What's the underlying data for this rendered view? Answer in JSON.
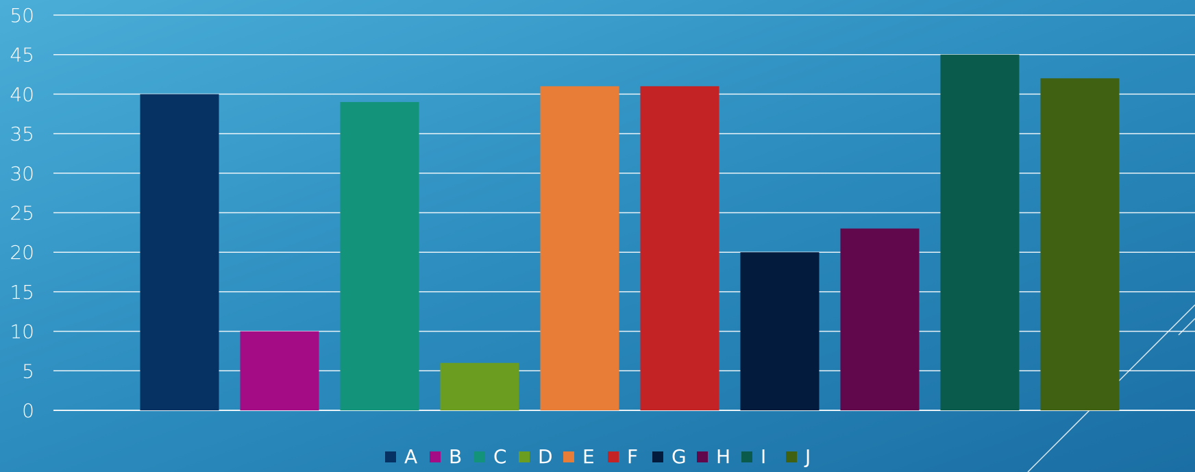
{
  "chart_data": {
    "type": "bar",
    "categories": [
      "A",
      "B",
      "C",
      "D",
      "E",
      "F",
      "G",
      "H",
      "I",
      "J"
    ],
    "series": [
      {
        "values": [
          40,
          10,
          39,
          6,
          41,
          41,
          20,
          23,
          45,
          42
        ]
      }
    ],
    "colors": [
      "#063263",
      "#a30c84",
      "#14937b",
      "#6b9e20",
      "#e87d38",
      "#c42326",
      "#031b3d",
      "#61084d",
      "#0b5b4c",
      "#406012"
    ],
    "ylim": [
      0,
      50
    ],
    "yticks": [
      0,
      5,
      10,
      15,
      20,
      25,
      30,
      35,
      40,
      45,
      50
    ],
    "grid": true,
    "legend": {
      "position": "bottom",
      "entries": [
        "A",
        "B",
        "C",
        "D",
        "E",
        "F",
        "G",
        "H",
        "I",
        "J"
      ]
    },
    "title": "",
    "xlabel": "",
    "ylabel": ""
  }
}
